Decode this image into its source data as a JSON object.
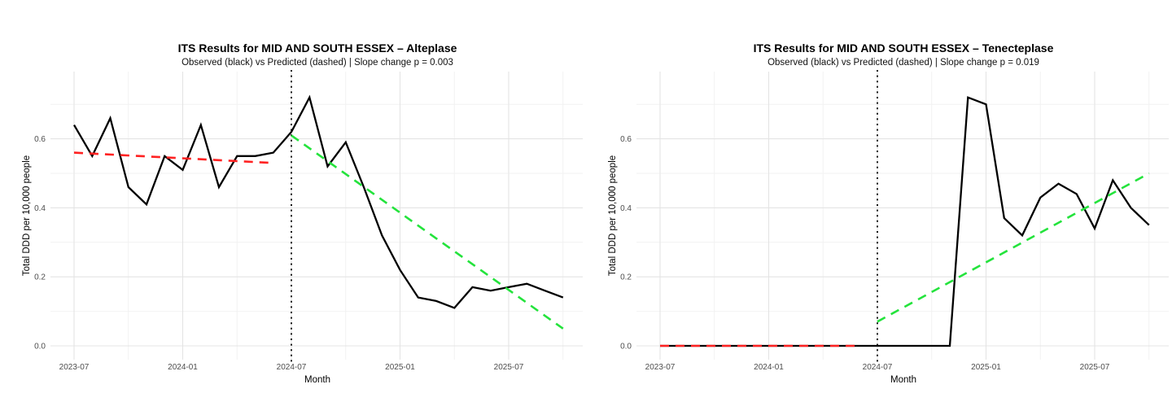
{
  "figure": {
    "background_color": "#ffffff",
    "region": "MID AND SOUTH ESSEX"
  },
  "chart_data": [
    {
      "type": "line",
      "title": "ITS Results for MID AND SOUTH ESSEX – Alteplase",
      "subtitle": "Observed (black) vs Predicted (dashed) | Slope change p = 0.003",
      "xlabel": "Month",
      "ylabel": "Total DDD per 10,000 people",
      "slope_change_p": 0.003,
      "intervention_month": "2024-07",
      "x_ticks": [
        "2023-07",
        "2024-01",
        "2024-07",
        "2025-01",
        "2025-07"
      ],
      "x_minor_gridlines": [
        "2023-10",
        "2024-04",
        "2024-10",
        "2025-04",
        "2025-10"
      ],
      "y_ticks": [
        0.0,
        0.2,
        0.4,
        0.6
      ],
      "y_minor_gridlines": [
        0.1,
        0.3,
        0.5,
        0.7
      ],
      "ylim": [
        0,
        0.78
      ],
      "grid": true,
      "legend_position": "none",
      "months": [
        "2023-07",
        "2023-08",
        "2023-09",
        "2023-10",
        "2023-11",
        "2023-12",
        "2024-01",
        "2024-02",
        "2024-03",
        "2024-04",
        "2024-05",
        "2024-06",
        "2024-07",
        "2024-08",
        "2024-09",
        "2024-10",
        "2024-11",
        "2024-12",
        "2025-01",
        "2025-02",
        "2025-03",
        "2025-04",
        "2025-05",
        "2025-06",
        "2025-07",
        "2025-08",
        "2025-09",
        "2025-10"
      ],
      "series": [
        {
          "name": "Observed",
          "style": "solid",
          "color": "#000000",
          "values": [
            0.64,
            0.55,
            0.66,
            0.46,
            0.41,
            0.55,
            0.51,
            0.64,
            0.46,
            0.55,
            0.55,
            0.56,
            0.62,
            0.72,
            0.52,
            0.59,
            0.46,
            0.32,
            0.22,
            0.14,
            0.13,
            0.11,
            0.17,
            0.16,
            0.17,
            0.18,
            0.16,
            0.14
          ]
        },
        {
          "name": "Predicted pre-intervention fit",
          "style": "dashed",
          "color": "#ff2222",
          "x_range": [
            "2023-07",
            "2024-06"
          ],
          "values": [
            0.56,
            0.53
          ]
        },
        {
          "name": "Predicted counterfactual post-intervention",
          "style": "dashed",
          "color": "#24e33c",
          "x_range": [
            "2024-07",
            "2025-10"
          ],
          "values": [
            0.61,
            0.05
          ]
        }
      ],
      "intervention_line": {
        "style": "dotted",
        "color": "#000000"
      }
    },
    {
      "type": "line",
      "title": "ITS Results for MID AND SOUTH ESSEX – Tenecteplase",
      "subtitle": "Observed (black) vs Predicted (dashed) | Slope change p = 0.019",
      "xlabel": "Month",
      "ylabel": "Total DDD per 10,000 people",
      "slope_change_p": 0.019,
      "intervention_month": "2024-07",
      "x_ticks": [
        "2023-07",
        "2024-01",
        "2024-07",
        "2025-01",
        "2025-07"
      ],
      "x_minor_gridlines": [
        "2023-10",
        "2024-04",
        "2024-10",
        "2025-04",
        "2025-10"
      ],
      "y_ticks": [
        0.0,
        0.2,
        0.4,
        0.6
      ],
      "y_minor_gridlines": [
        0.1,
        0.3,
        0.5,
        0.7
      ],
      "ylim": [
        0,
        0.78
      ],
      "grid": true,
      "legend_position": "none",
      "months": [
        "2023-07",
        "2023-08",
        "2023-09",
        "2023-10",
        "2023-11",
        "2023-12",
        "2024-01",
        "2024-02",
        "2024-03",
        "2024-04",
        "2024-05",
        "2024-06",
        "2024-07",
        "2024-08",
        "2024-09",
        "2024-10",
        "2024-11",
        "2024-12",
        "2025-01",
        "2025-02",
        "2025-03",
        "2025-04",
        "2025-05",
        "2025-06",
        "2025-07",
        "2025-08",
        "2025-09",
        "2025-10"
      ],
      "series": [
        {
          "name": "Observed",
          "style": "solid",
          "color": "#000000",
          "values": [
            0.0,
            0.0,
            0.0,
            0.0,
            0.0,
            0.0,
            0.0,
            0.0,
            0.0,
            0.0,
            0.0,
            0.0,
            0.0,
            0.0,
            0.0,
            0.0,
            0.0,
            0.72,
            0.7,
            0.37,
            0.32,
            0.43,
            0.47,
            0.44,
            0.34,
            0.48,
            0.4,
            0.35
          ]
        },
        {
          "name": "Predicted pre-intervention fit",
          "style": "dashed",
          "color": "#ff2222",
          "x_range": [
            "2023-07",
            "2024-06"
          ],
          "values": [
            0.0,
            0.0
          ]
        },
        {
          "name": "Predicted counterfactual post-intervention",
          "style": "dashed",
          "color": "#24e33c",
          "x_range": [
            "2024-07",
            "2025-10"
          ],
          "values": [
            0.07,
            0.5
          ]
        }
      ],
      "intervention_line": {
        "style": "dotted",
        "color": "#000000"
      }
    }
  ]
}
